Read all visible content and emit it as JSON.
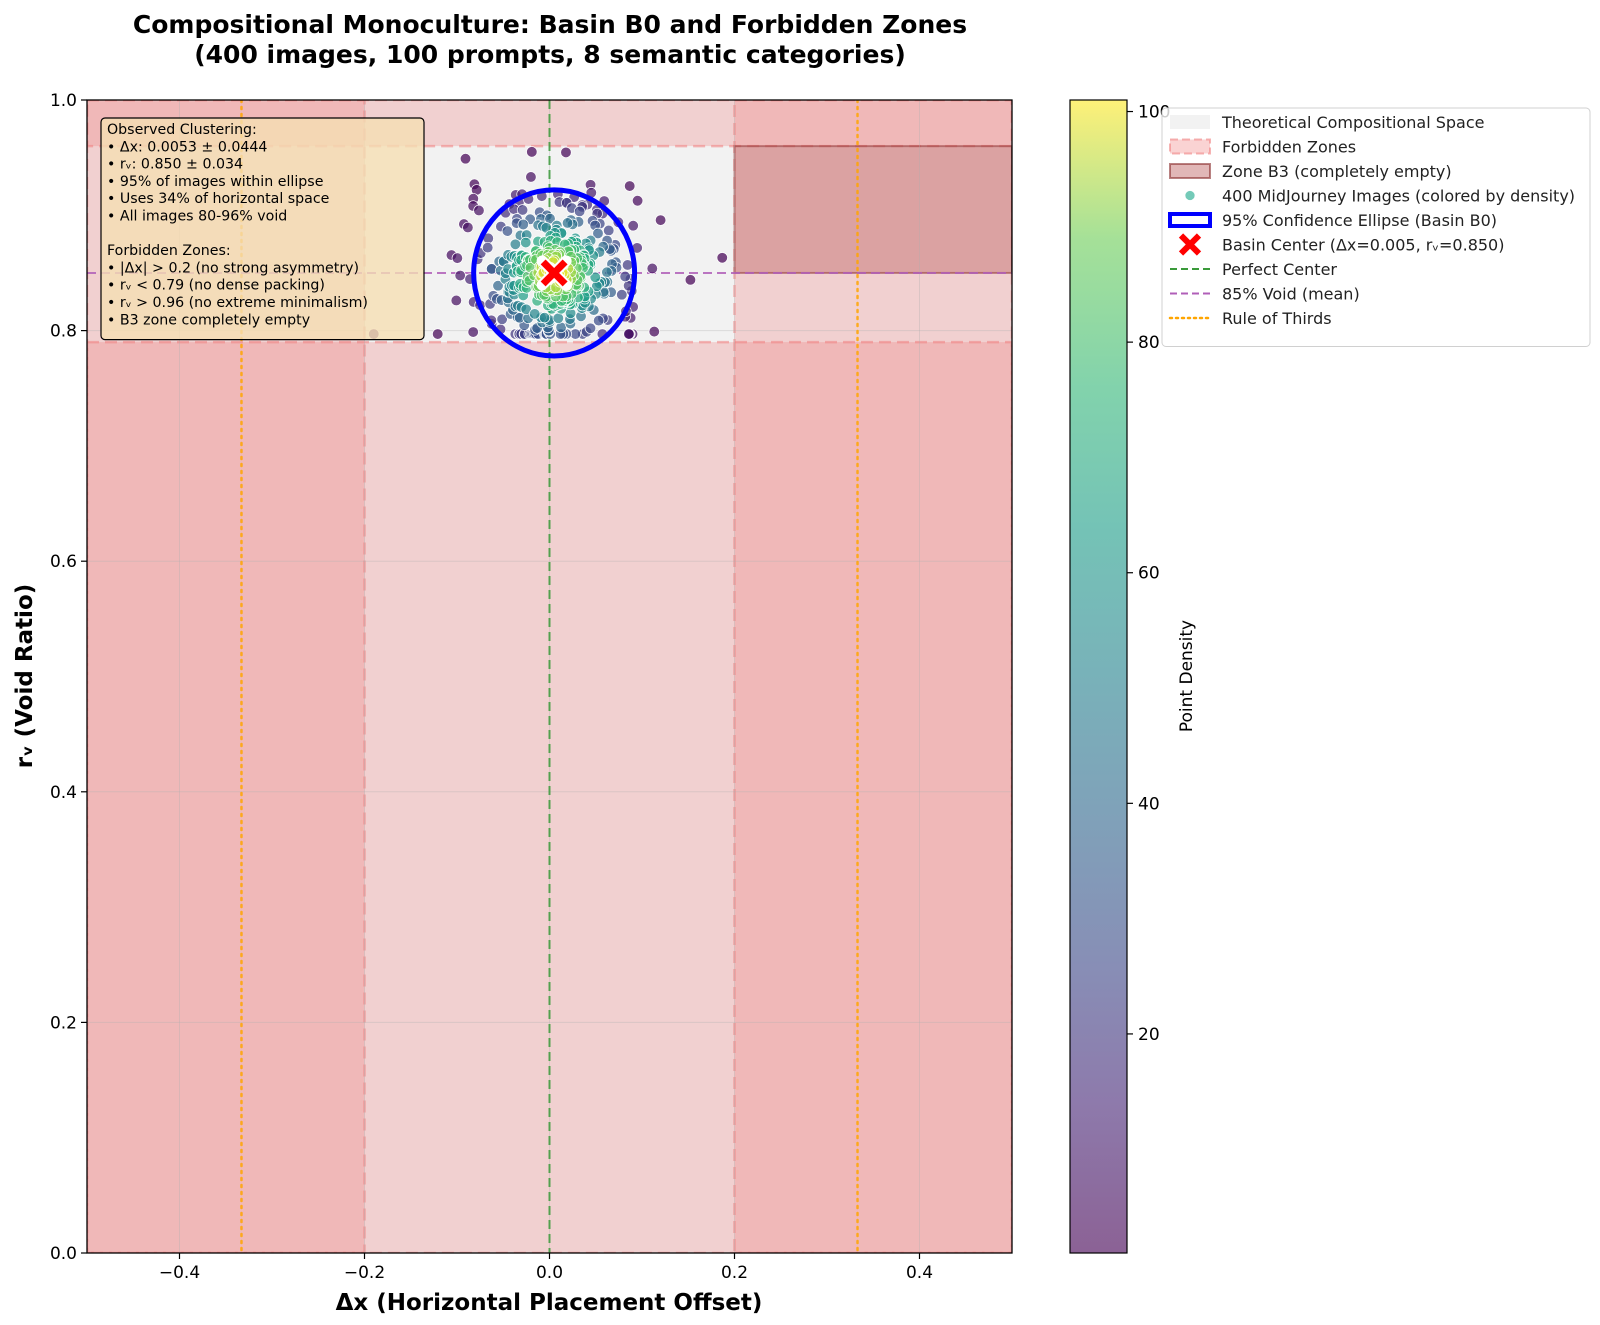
{
  "chart_data": {
    "type": "scatter",
    "title": "Compositional Monoculture: Basin B0 and Forbidden Zones",
    "subtitle": "(400 images, 100 prompts, 8 semantic categories)",
    "xlabel": "Δx (Horizontal Placement Offset)",
    "ylabel": "rᵥ (Void Ratio)",
    "xlim": [
      -0.5,
      0.5
    ],
    "ylim": [
      0.0,
      1.0
    ],
    "x_ticks": [
      -0.4,
      -0.2,
      0.0,
      0.2,
      0.4
    ],
    "x_tick_labels": [
      "−0.4",
      "−0.2",
      "0.0",
      "0.2",
      "0.4"
    ],
    "y_ticks": [
      0.0,
      0.2,
      0.4,
      0.6,
      0.8,
      1.0
    ],
    "y_tick_labels": [
      "0.0",
      "0.2",
      "0.4",
      "0.6",
      "0.8",
      "1.0"
    ],
    "grid": true,
    "colorbar": {
      "label": "Point Density",
      "range": [
        1,
        101
      ],
      "ticks": [
        20,
        40,
        60,
        80,
        100
      ],
      "tick_labels": [
        "20",
        "40",
        "60",
        "80",
        "100"
      ],
      "colormap": "viridis"
    },
    "zones": {
      "theoretical_space": {
        "x": [
          -0.5,
          0.5
        ],
        "y": [
          0.0,
          1.0
        ],
        "color": "#f2f2f2"
      },
      "allowed_region": {
        "x": [
          -0.2,
          0.2
        ],
        "y": [
          0.79,
          0.96
        ]
      },
      "forbidden_x_threshold": 0.2,
      "forbidden_rv_low": 0.79,
      "forbidden_rv_high": 0.96,
      "forbidden_color": "#f08080",
      "b3_zone": {
        "x": [
          0.2,
          0.5
        ],
        "y": [
          0.85,
          0.96
        ],
        "color": "#c97b7b"
      }
    },
    "basin_center": {
      "x": 0.005,
      "y": 0.85
    },
    "ellipse": {
      "cx": 0.005,
      "cy": 0.85,
      "rx": 0.087,
      "ry": 0.072,
      "color": "#0000ff"
    },
    "reference_lines": {
      "perfect_center_x": 0.0,
      "void_mean_y": 0.85,
      "rule_of_thirds_x": [
        -0.333,
        0.333
      ]
    },
    "scatter_summary": {
      "count": 400,
      "dx_mean": 0.0053,
      "dx_std": 0.0444,
      "rv_mean": 0.85,
      "rv_std": 0.034
    },
    "legend": {
      "position": "upper-right-outside",
      "entries": [
        "Theoretical Compositional Space",
        "Forbidden Zones",
        "Zone B3 (completely empty)",
        "400 MidJourney Images (colored by density)",
        "95% Confidence Ellipse (Basin B0)",
        "Basin Center (Δx=0.005, rᵥ=0.850)",
        "Perfect Center",
        "85% Void (mean)",
        "Rule of Thirds"
      ]
    },
    "annotation_box": {
      "lines": [
        "Observed Clustering:",
        "• Δx: 0.0053 ± 0.0444",
        "• rᵥ: 0.850 ± 0.034",
        "• 95% of images within ellipse",
        "• Uses 34% of horizontal space",
        "• All images 80-96% void",
        "",
        "Forbidden Zones:",
        "• |Δx| > 0.2 (no strong asymmetry)",
        "• rᵥ < 0.79 (no dense packing)",
        "• rᵥ > 0.96 (no extreme minimalism)",
        "• B3 zone completely empty"
      ]
    },
    "colors": {
      "perfect_center": "#3a9a3a",
      "void_mean": "#b05fb8",
      "rule_of_thirds": "#ffa500",
      "basin_center": "#ff0000",
      "annotation_bg": "#f5deb3"
    }
  }
}
